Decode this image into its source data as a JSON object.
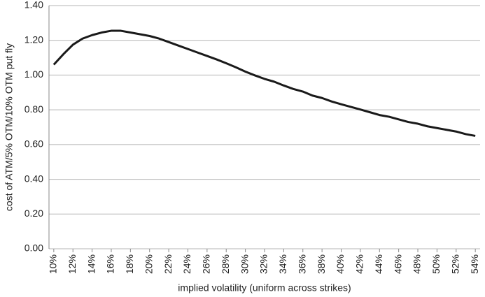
{
  "chart_data": {
    "type": "line",
    "x_label": "implied volatility (uniform across strikes)",
    "y_label": "cost of ATM/5% OTM/10% OTM put fly",
    "x": [
      10,
      11,
      12,
      13,
      14,
      15,
      16,
      17,
      18,
      19,
      20,
      21,
      22,
      23,
      24,
      25,
      26,
      27,
      28,
      29,
      30,
      31,
      32,
      33,
      34,
      35,
      36,
      37,
      38,
      39,
      40,
      41,
      42,
      43,
      44,
      45,
      46,
      47,
      48,
      49,
      50,
      51,
      52,
      53,
      54
    ],
    "series": [
      {
        "name": "put fly cost",
        "color": "#1a1a1a",
        "values": [
          1.06,
          1.12,
          1.175,
          1.21,
          1.23,
          1.245,
          1.255,
          1.255,
          1.245,
          1.235,
          1.225,
          1.21,
          1.19,
          1.17,
          1.15,
          1.13,
          1.11,
          1.09,
          1.068,
          1.045,
          1.02,
          0.998,
          0.978,
          0.962,
          0.94,
          0.92,
          0.905,
          0.882,
          0.868,
          0.848,
          0.832,
          0.817,
          0.802,
          0.786,
          0.77,
          0.76,
          0.745,
          0.73,
          0.72,
          0.705,
          0.695,
          0.685,
          0.675,
          0.66,
          0.65
        ]
      }
    ],
    "xlim": [
      9.5,
      54.5
    ],
    "xticks": [
      {
        "value": 10,
        "label": "10%"
      },
      {
        "value": 12,
        "label": "12%"
      },
      {
        "value": 14,
        "label": "14%"
      },
      {
        "value": 16,
        "label": "16%"
      },
      {
        "value": 18,
        "label": "18%"
      },
      {
        "value": 20,
        "label": "20%"
      },
      {
        "value": 22,
        "label": "22%"
      },
      {
        "value": 24,
        "label": "24%"
      },
      {
        "value": 26,
        "label": "26%"
      },
      {
        "value": 28,
        "label": "28%"
      },
      {
        "value": 30,
        "label": "30%"
      },
      {
        "value": 32,
        "label": "32%"
      },
      {
        "value": 34,
        "label": "34%"
      },
      {
        "value": 36,
        "label": "36%"
      },
      {
        "value": 38,
        "label": "38%"
      },
      {
        "value": 40,
        "label": "40%"
      },
      {
        "value": 42,
        "label": "42%"
      },
      {
        "value": 44,
        "label": "44%"
      },
      {
        "value": 46,
        "label": "46%"
      },
      {
        "value": 48,
        "label": "48%"
      },
      {
        "value": 50,
        "label": "50%"
      },
      {
        "value": 52,
        "label": "52%"
      },
      {
        "value": 54,
        "label": "54%"
      }
    ],
    "ylim": [
      0,
      1.4
    ],
    "yticks": [
      {
        "value": 0,
        "label": "0.00"
      },
      {
        "value": 0.2,
        "label": "0.20"
      },
      {
        "value": 0.4,
        "label": "0.40"
      },
      {
        "value": 0.6,
        "label": "0.60"
      },
      {
        "value": 0.8,
        "label": "0.80"
      },
      {
        "value": 1.0,
        "label": "1.00"
      },
      {
        "value": 1.2,
        "label": "1.20"
      },
      {
        "value": 1.4,
        "label": "1.40"
      }
    ],
    "grid": true
  }
}
